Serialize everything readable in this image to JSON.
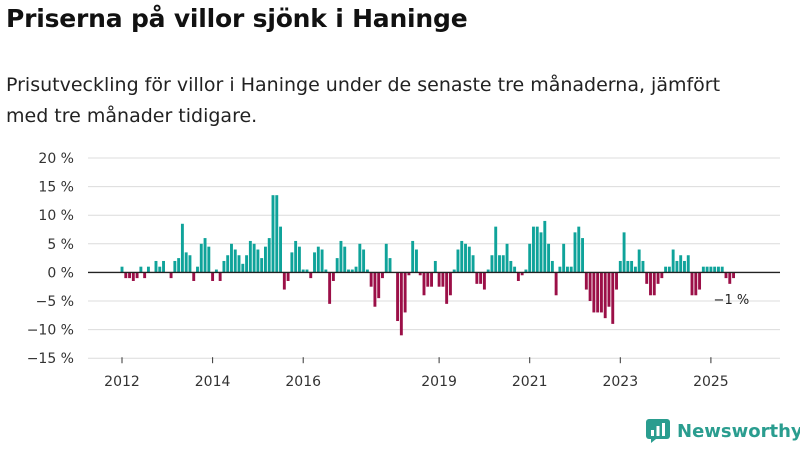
{
  "header": {
    "title": "Priserna på villor sjönk i Haninge",
    "subtitle": "Prisutveckling för villor i Haninge under de senaste tre månaderna, jämfört med tre månader tidigare."
  },
  "brand": {
    "name": "Newsworthy",
    "color": "#2a9d8f"
  },
  "chart_data": {
    "type": "bar",
    "title": "Priserna på villor sjönk i Haninge",
    "xlabel": "",
    "ylabel": "",
    "ylim": [
      -15,
      20
    ],
    "yticks": [
      -15,
      -10,
      -5,
      0,
      5,
      10,
      15,
      20
    ],
    "ytick_labels": [
      "−15 %",
      "−10 %",
      "−5 %",
      "0 %",
      "5 %",
      "10 %",
      "15 %",
      "20 %"
    ],
    "xticks": [
      2012,
      2014,
      2016,
      2019,
      2021,
      2023,
      2025
    ],
    "xtick_labels": [
      "2012",
      "2014",
      "2016",
      "2019",
      "2021",
      "2023",
      "2025"
    ],
    "grid": true,
    "colors": {
      "positive": "#0fa39a",
      "negative": "#9b0f47"
    },
    "annotation": {
      "text": "−1 %",
      "at": "last"
    },
    "series": [
      {
        "name": "Prisutveckling",
        "start": "2012-01",
        "frequency": "monthly",
        "values": [
          1,
          -1,
          -1,
          -1.5,
          -1,
          1,
          -1,
          1,
          0,
          2,
          1,
          2,
          0,
          -1,
          2,
          2.5,
          8.5,
          3.5,
          3,
          -1.5,
          1,
          5,
          6,
          4.5,
          -1.5,
          0.5,
          -1.5,
          2,
          3,
          5,
          4,
          3,
          1.5,
          3,
          5.5,
          5,
          4,
          2.5,
          4.5,
          6,
          13.5,
          13.5,
          8,
          -3,
          -1.5,
          3.5,
          5.5,
          4.5,
          0.5,
          0.5,
          -1,
          3.5,
          4.5,
          4,
          0.5,
          -5.5,
          -1.5,
          2.5,
          5.5,
          4.5,
          0.5,
          0.5,
          1,
          5,
          4,
          0.5,
          -2.5,
          -6,
          -4.5,
          -1,
          5,
          2.5,
          0,
          -8.5,
          -11,
          -7,
          -0.5,
          5.5,
          4,
          -0.5,
          -4,
          -2.5,
          -2.5,
          2,
          -2.5,
          -2.5,
          -5.5,
          -4,
          0.5,
          4,
          5.5,
          5,
          4.5,
          3,
          -2,
          -2,
          -3,
          0.5,
          3,
          8,
          3,
          3,
          5,
          2,
          1,
          -1.5,
          -0.5,
          0.5,
          5,
          8,
          8,
          7,
          9,
          5,
          2,
          -4,
          1,
          5,
          1,
          1,
          7,
          8,
          6,
          -3,
          -5,
          -7,
          -7,
          -7,
          -8,
          -6,
          -9,
          -3,
          2,
          7,
          2,
          2,
          1,
          4,
          2,
          -2,
          -4,
          -4,
          -2,
          -1,
          1,
          1,
          4,
          2,
          3,
          2,
          3,
          -4,
          -4,
          -3,
          1,
          1,
          1,
          1,
          1,
          1,
          -1,
          -2,
          -1
        ]
      }
    ]
  }
}
